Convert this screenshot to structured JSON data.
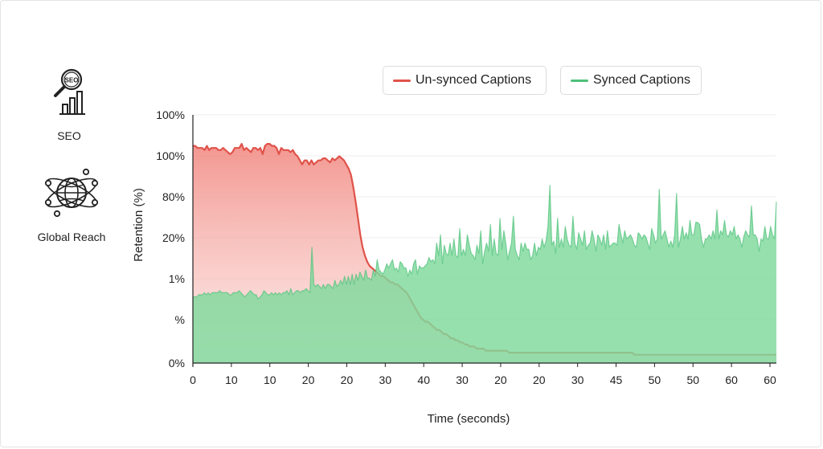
{
  "sidebar": {
    "seo_label": "SEO",
    "global_label": "Global Reach"
  },
  "chart_data": {
    "type": "area",
    "xlabel": "Time (seconds)",
    "ylabel": "Retention (%)",
    "x_tick_labels": [
      "0",
      "10",
      "10",
      "20",
      "20",
      "30",
      "40",
      "30",
      "20",
      "20",
      "30",
      "45",
      "50",
      "50",
      "60",
      "60"
    ],
    "y_tick_labels": [
      "100%",
      "100%",
      "80%",
      "20%",
      "1%",
      "%",
      "0%"
    ],
    "grid": true,
    "legend_position": "top",
    "series": [
      {
        "name": "Un-synced Captions",
        "color": "#e0534a",
        "fill": "#f4a39c",
        "values": [
          105,
          105,
          104,
          104,
          104,
          103,
          105,
          103,
          104,
          104,
          104,
          103,
          103,
          104,
          103,
          102,
          101,
          102,
          104,
          104,
          104,
          106,
          103,
          104,
          103,
          102,
          104,
          104,
          103,
          104,
          101,
          105,
          106,
          106,
          105,
          105,
          104,
          101,
          104,
          103,
          103,
          103,
          102,
          103,
          101,
          100,
          98,
          96,
          98,
          98,
          96,
          98,
          96,
          97,
          98,
          98,
          99,
          99,
          98,
          97,
          99,
          98,
          99,
          100,
          99,
          98,
          96,
          94,
          91,
          85,
          78,
          70,
          62,
          56,
          52,
          49,
          47,
          46,
          45,
          44,
          43,
          42,
          42,
          41,
          40,
          39,
          39,
          38,
          38,
          37,
          36,
          35,
          34,
          32,
          30,
          28,
          26,
          24,
          22,
          21,
          20,
          20,
          19,
          18,
          17,
          16,
          16,
          15,
          14,
          14,
          13,
          12,
          12,
          11,
          11,
          10,
          10,
          9,
          9,
          8,
          8,
          8,
          7,
          7,
          7,
          7,
          6,
          6,
          6,
          6,
          6,
          6,
          6,
          6,
          6,
          6,
          5,
          5,
          5,
          5,
          5,
          5,
          5,
          5,
          5,
          5,
          5,
          5,
          5,
          5,
          5,
          5,
          5,
          5,
          5,
          5,
          5,
          5,
          5,
          5,
          5,
          5,
          5,
          5,
          5,
          5,
          5,
          5,
          5,
          5,
          5,
          5,
          5,
          5,
          5,
          5,
          5,
          5,
          5,
          5,
          5,
          5,
          5,
          5,
          5,
          5,
          5,
          5,
          5,
          5,
          4,
          4,
          4,
          4,
          4,
          4,
          4,
          4,
          4,
          4,
          4,
          4,
          4,
          4,
          4,
          4,
          4,
          4,
          4,
          4,
          4,
          4,
          4,
          4,
          4,
          4,
          4,
          4,
          4,
          4,
          4,
          4,
          4,
          4,
          4,
          4,
          4,
          4,
          4,
          4,
          4,
          4,
          4,
          4,
          4,
          4,
          4,
          4,
          4,
          4,
          4,
          4,
          4,
          4,
          4,
          4,
          4,
          4,
          4,
          4,
          4,
          4
        ]
      },
      {
        "name": "Synced Captions",
        "color": "#4ec07a",
        "fill": "#7fd99c",
        "values": [
          32,
          32,
          32,
          33,
          33,
          33,
          34,
          33,
          34,
          33,
          34,
          34,
          34,
          34,
          35,
          34,
          34,
          34,
          34,
          33,
          33,
          34,
          34,
          34,
          35,
          34,
          33,
          32,
          33,
          34,
          35,
          34,
          33,
          33,
          31,
          32,
          33,
          35,
          34,
          33,
          33,
          34,
          33,
          34,
          33,
          34,
          33,
          34,
          34,
          35,
          33,
          36,
          33,
          34,
          35,
          35,
          34,
          35,
          35,
          36,
          35,
          34,
          56,
          38,
          37,
          38,
          37,
          36,
          38,
          36,
          38,
          38,
          37,
          36,
          40,
          37,
          38,
          40,
          38,
          42,
          38,
          42,
          38,
          43,
          38,
          43,
          40,
          44,
          42,
          40,
          45,
          41,
          41,
          40,
          45,
          42,
          50,
          45,
          44,
          43,
          45,
          48,
          46,
          48,
          50,
          45,
          46,
          44,
          49,
          48,
          46,
          46,
          42,
          45,
          43,
          48,
          50,
          43,
          47,
          46,
          46,
          47,
          48,
          51,
          49,
          50,
          48,
          58,
          52,
          62,
          48,
          57,
          53,
          52,
          58,
          52,
          60,
          52,
          51,
          65,
          52,
          55,
          52,
          62,
          57,
          53,
          52,
          50,
          57,
          53,
          64,
          48,
          54,
          58,
          54,
          67,
          52,
          60,
          53,
          52,
          70,
          55,
          64,
          58,
          50,
          54,
          58,
          71,
          55,
          52,
          50,
          58,
          54,
          58,
          55,
          55,
          50,
          52,
          58,
          52,
          56,
          55,
          60,
          56,
          59,
          66,
          86,
          57,
          59,
          53,
          70,
          56,
          60,
          56,
          66,
          60,
          57,
          56,
          71,
          58,
          55,
          63,
          60,
          57,
          64,
          55,
          57,
          58,
          64,
          60,
          54,
          62,
          60,
          57,
          62,
          55,
          64,
          56,
          57,
          58,
          58,
          57,
          67,
          62,
          58,
          64,
          60,
          61,
          62,
          60,
          57,
          56,
          63,
          62,
          60,
          62,
          61,
          58,
          55,
          65,
          62,
          58,
          60,
          84,
          60,
          62,
          64,
          60,
          56,
          59,
          56,
          62,
          82,
          56,
          60,
          66,
          60,
          63,
          60,
          69,
          62,
          62,
          68,
          68,
          67,
          60,
          56,
          60,
          60,
          62,
          60,
          64,
          60,
          74,
          60,
          64,
          62,
          69,
          62,
          61,
          64,
          62,
          66,
          60,
          62,
          60,
          56,
          61,
          64,
          62,
          61,
          76,
          62,
          62,
          60,
          54,
          60,
          59,
          66,
          60,
          60,
          66,
          62,
          60,
          78
        ]
      }
    ]
  }
}
